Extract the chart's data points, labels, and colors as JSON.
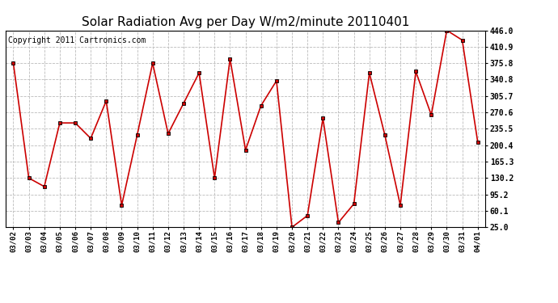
{
  "title": "Solar Radiation Avg per Day W/m2/minute 20110401",
  "copyright": "Copyright 2011 Cartronics.com",
  "dates": [
    "03/02",
    "03/03",
    "03/04",
    "03/05",
    "03/06",
    "03/07",
    "03/08",
    "03/09",
    "03/10",
    "03/11",
    "03/12",
    "03/13",
    "03/14",
    "03/15",
    "03/16",
    "03/17",
    "03/18",
    "03/19",
    "03/20",
    "03/21",
    "03/22",
    "03/23",
    "03/24",
    "03/25",
    "03/26",
    "03/27",
    "03/28",
    "03/29",
    "03/30",
    "03/31",
    "04/01"
  ],
  "values": [
    375.8,
    130.2,
    112.0,
    248.0,
    248.0,
    215.0,
    295.0,
    72.0,
    222.0,
    375.8,
    225.0,
    290.0,
    355.0,
    130.2,
    385.0,
    190.0,
    285.0,
    338.0,
    25.0,
    50.0,
    258.0,
    35.0,
    75.0,
    355.0,
    222.0,
    72.0,
    358.0,
    265.0,
    446.0,
    425.0,
    207.0
  ],
  "ylim": [
    25.0,
    446.0
  ],
  "yticks": [
    25.0,
    60.1,
    95.2,
    130.2,
    165.3,
    200.4,
    235.5,
    270.6,
    305.7,
    340.8,
    375.8,
    410.9,
    446.0
  ],
  "line_color": "#cc0000",
  "marker_color": "#cc0000",
  "bg_color": "#ffffff",
  "plot_bg_color": "#ffffff",
  "grid_color": "#bbbbbb",
  "title_fontsize": 11,
  "copyright_fontsize": 7
}
